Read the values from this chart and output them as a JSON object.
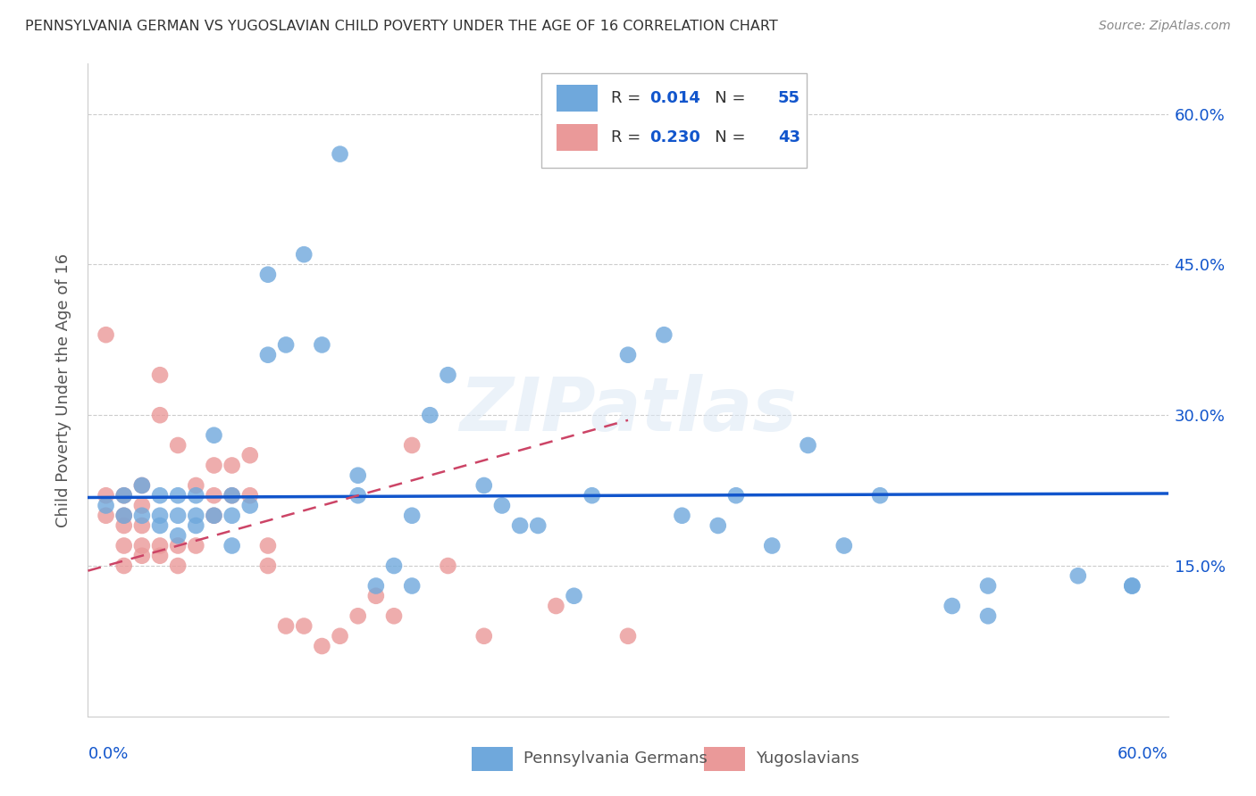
{
  "title": "PENNSYLVANIA GERMAN VS YUGOSLAVIAN CHILD POVERTY UNDER THE AGE OF 16 CORRELATION CHART",
  "source": "Source: ZipAtlas.com",
  "ylabel": "Child Poverty Under the Age of 16",
  "ytick_labels": [
    "15.0%",
    "30.0%",
    "45.0%",
    "60.0%"
  ],
  "ytick_vals": [
    0.15,
    0.3,
    0.45,
    0.6
  ],
  "xlim": [
    0.0,
    0.6
  ],
  "ylim": [
    0.0,
    0.65
  ],
  "blue_R": "0.014",
  "blue_N": "55",
  "pink_R": "0.230",
  "pink_N": "43",
  "legend_label_blue": "Pennsylvania Germans",
  "legend_label_pink": "Yugoslavians",
  "blue_color": "#6fa8dc",
  "pink_color": "#ea9999",
  "blue_line_color": "#1155cc",
  "pink_line_color": "#cc4466",
  "watermark": "ZIPatlas",
  "blue_line_x": [
    0.0,
    0.6
  ],
  "blue_line_y": [
    0.218,
    0.222
  ],
  "pink_line_x": [
    0.0,
    0.3
  ],
  "pink_line_y": [
    0.145,
    0.295
  ],
  "blue_scatter_x": [
    0.01,
    0.02,
    0.02,
    0.03,
    0.03,
    0.04,
    0.04,
    0.04,
    0.05,
    0.05,
    0.05,
    0.06,
    0.06,
    0.06,
    0.07,
    0.07,
    0.08,
    0.08,
    0.08,
    0.09,
    0.1,
    0.1,
    0.11,
    0.12,
    0.13,
    0.14,
    0.15,
    0.15,
    0.16,
    0.17,
    0.18,
    0.18,
    0.19,
    0.2,
    0.22,
    0.23,
    0.24,
    0.25,
    0.27,
    0.28,
    0.3,
    0.32,
    0.33,
    0.35,
    0.36,
    0.38,
    0.4,
    0.42,
    0.44,
    0.48,
    0.5,
    0.5,
    0.55,
    0.58,
    0.58
  ],
  "blue_scatter_y": [
    0.21,
    0.22,
    0.2,
    0.2,
    0.23,
    0.2,
    0.22,
    0.19,
    0.2,
    0.22,
    0.18,
    0.2,
    0.22,
    0.19,
    0.2,
    0.28,
    0.22,
    0.2,
    0.17,
    0.21,
    0.36,
    0.44,
    0.37,
    0.46,
    0.37,
    0.56,
    0.22,
    0.24,
    0.13,
    0.15,
    0.13,
    0.2,
    0.3,
    0.34,
    0.23,
    0.21,
    0.19,
    0.19,
    0.12,
    0.22,
    0.36,
    0.38,
    0.2,
    0.19,
    0.22,
    0.17,
    0.27,
    0.17,
    0.22,
    0.11,
    0.13,
    0.1,
    0.14,
    0.13,
    0.13
  ],
  "pink_scatter_x": [
    0.01,
    0.01,
    0.01,
    0.02,
    0.02,
    0.02,
    0.02,
    0.02,
    0.03,
    0.03,
    0.03,
    0.03,
    0.03,
    0.04,
    0.04,
    0.04,
    0.04,
    0.05,
    0.05,
    0.05,
    0.06,
    0.06,
    0.07,
    0.07,
    0.07,
    0.08,
    0.08,
    0.09,
    0.09,
    0.1,
    0.1,
    0.11,
    0.12,
    0.13,
    0.14,
    0.15,
    0.16,
    0.17,
    0.18,
    0.2,
    0.22,
    0.26,
    0.3
  ],
  "pink_scatter_y": [
    0.2,
    0.22,
    0.38,
    0.15,
    0.17,
    0.2,
    0.22,
    0.19,
    0.16,
    0.17,
    0.19,
    0.21,
    0.23,
    0.16,
    0.17,
    0.3,
    0.34,
    0.15,
    0.17,
    0.27,
    0.17,
    0.23,
    0.2,
    0.22,
    0.25,
    0.22,
    0.25,
    0.22,
    0.26,
    0.15,
    0.17,
    0.09,
    0.09,
    0.07,
    0.08,
    0.1,
    0.12,
    0.1,
    0.27,
    0.15,
    0.08,
    0.11,
    0.08
  ]
}
